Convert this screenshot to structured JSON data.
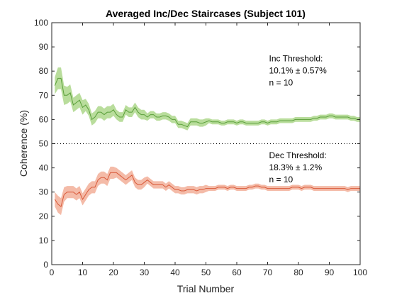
{
  "chart_data": {
    "type": "line",
    "title": "Averaged Inc/Dec Staircases (Subject 101)",
    "xlabel": "Trial Number",
    "ylabel": "Coherence (%)",
    "xlim": [
      0,
      100
    ],
    "ylim": [
      0,
      100
    ],
    "xticks": [
      "0",
      "10",
      "20",
      "30",
      "40",
      "50",
      "60",
      "70",
      "80",
      "90",
      "100"
    ],
    "yticks": [
      "0",
      "10",
      "20",
      "30",
      "40",
      "50",
      "60",
      "70",
      "80",
      "90",
      "100"
    ],
    "grid": false,
    "reference_line": {
      "y": 50,
      "style": "dotted",
      "color": "#000000"
    },
    "series": [
      {
        "color": "#5a9f3a",
        "band_color": "#b9dd9c",
        "points": [
          [
            1,
            74
          ],
          [
            2,
            77
          ],
          [
            3,
            77
          ],
          [
            4,
            70
          ],
          [
            5,
            70
          ],
          [
            6,
            71
          ],
          [
            7,
            66
          ],
          [
            8,
            67
          ],
          [
            9,
            68
          ],
          [
            10,
            65
          ],
          [
            11,
            66
          ],
          [
            12,
            64
          ],
          [
            13,
            60
          ],
          [
            14,
            61
          ],
          [
            15,
            63
          ],
          [
            16,
            63
          ],
          [
            17,
            62
          ],
          [
            18,
            63
          ],
          [
            19,
            63
          ],
          [
            20,
            64
          ],
          [
            21,
            62
          ],
          [
            22,
            61
          ],
          [
            23,
            61
          ],
          [
            24,
            64
          ],
          [
            25,
            63
          ],
          [
            26,
            63
          ],
          [
            27,
            65
          ],
          [
            28,
            63
          ],
          [
            29,
            62
          ],
          [
            30,
            62
          ],
          [
            31,
            61
          ],
          [
            32,
            62
          ],
          [
            33,
            62
          ],
          [
            34,
            61
          ],
          [
            35,
            61
          ],
          [
            36,
            61.5
          ],
          [
            37,
            61.5
          ],
          [
            38,
            61
          ],
          [
            39,
            60
          ],
          [
            40,
            60
          ],
          [
            41,
            58
          ],
          [
            42,
            58
          ],
          [
            43,
            57.5
          ],
          [
            44,
            57
          ],
          [
            45,
            59
          ],
          [
            46,
            59
          ],
          [
            47,
            59
          ],
          [
            48,
            58.5
          ],
          [
            49,
            58.5
          ],
          [
            50,
            59
          ],
          [
            51,
            59.5
          ],
          [
            52,
            59
          ],
          [
            53,
            59
          ],
          [
            54,
            59
          ],
          [
            55,
            58.5
          ],
          [
            56,
            58.5
          ],
          [
            57,
            59
          ],
          [
            58,
            59
          ],
          [
            59,
            59
          ],
          [
            60,
            58.5
          ],
          [
            61,
            59
          ],
          [
            62,
            59
          ],
          [
            63,
            58.5
          ],
          [
            64,
            58.5
          ],
          [
            65,
            58.5
          ],
          [
            66,
            58.5
          ],
          [
            67,
            58.5
          ],
          [
            68,
            59
          ],
          [
            69,
            59
          ],
          [
            70,
            58.5
          ],
          [
            71,
            59
          ],
          [
            72,
            59
          ],
          [
            73,
            59
          ],
          [
            74,
            59.5
          ],
          [
            75,
            59.5
          ],
          [
            76,
            59.5
          ],
          [
            77,
            59.5
          ],
          [
            78,
            59.5
          ],
          [
            79,
            60
          ],
          [
            80,
            60
          ],
          [
            81,
            60
          ],
          [
            82,
            60
          ],
          [
            83,
            60
          ],
          [
            84,
            60
          ],
          [
            85,
            60.5
          ],
          [
            86,
            60.5
          ],
          [
            87,
            61
          ],
          [
            88,
            61
          ],
          [
            89,
            61
          ],
          [
            90,
            61.5
          ],
          [
            91,
            61.5
          ],
          [
            92,
            61
          ],
          [
            93,
            61
          ],
          [
            94,
            61
          ],
          [
            95,
            61
          ],
          [
            96,
            61
          ],
          [
            97,
            60.5
          ],
          [
            98,
            60.5
          ],
          [
            99,
            60
          ],
          [
            100,
            60
          ]
        ],
        "error": [
          3.5,
          4.5,
          4.5,
          4,
          3.5,
          3.5,
          3,
          3,
          3,
          3,
          2.5,
          2.5,
          2.5,
          2.5,
          2.5,
          2.5,
          2.5,
          2.5,
          2.5,
          2.5,
          2,
          2,
          2,
          2,
          2,
          2,
          2,
          2,
          2,
          2,
          1.5,
          1.5,
          1.5,
          1.5,
          1.5,
          1.5,
          1.5,
          1.5,
          1.5,
          1.5,
          1.5,
          1.5,
          1.5,
          1.5,
          1.5,
          1.5,
          1.5,
          1.5,
          1.5,
          1.5,
          1,
          1,
          1,
          1,
          1,
          1,
          1,
          1,
          1,
          1,
          1,
          1,
          1,
          1,
          1,
          1,
          1,
          1,
          1,
          1,
          1,
          1,
          1,
          1,
          1,
          1,
          1,
          1,
          1,
          1,
          1,
          1,
          1,
          1,
          1,
          1,
          1,
          1,
          1,
          1,
          1,
          1,
          1,
          1,
          1,
          1,
          1,
          1,
          1,
          1
        ]
      },
      {
        "color": "#d95a3a",
        "band_color": "#f4bba8",
        "points": [
          [
            1,
            27
          ],
          [
            2,
            25
          ],
          [
            3,
            24
          ],
          [
            4,
            29
          ],
          [
            5,
            30
          ],
          [
            6,
            30
          ],
          [
            7,
            30
          ],
          [
            8,
            29
          ],
          [
            9,
            30
          ],
          [
            10,
            27
          ],
          [
            11,
            29
          ],
          [
            12,
            31
          ],
          [
            13,
            32
          ],
          [
            14,
            32
          ],
          [
            15,
            35
          ],
          [
            16,
            36
          ],
          [
            17,
            36
          ],
          [
            18,
            35
          ],
          [
            19,
            38
          ],
          [
            20,
            38
          ],
          [
            21,
            38
          ],
          [
            22,
            37
          ],
          [
            23,
            36
          ],
          [
            24,
            35
          ],
          [
            25,
            36
          ],
          [
            26,
            37
          ],
          [
            27,
            34
          ],
          [
            28,
            33
          ],
          [
            29,
            33
          ],
          [
            30,
            34
          ],
          [
            31,
            35
          ],
          [
            32,
            34
          ],
          [
            33,
            33
          ],
          [
            34,
            33
          ],
          [
            35,
            33
          ],
          [
            36,
            33
          ],
          [
            37,
            32
          ],
          [
            38,
            33
          ],
          [
            39,
            32
          ],
          [
            40,
            31
          ],
          [
            41,
            31
          ],
          [
            42,
            30.5
          ],
          [
            43,
            30.5
          ],
          [
            44,
            31
          ],
          [
            45,
            31
          ],
          [
            46,
            31
          ],
          [
            47,
            30.5
          ],
          [
            48,
            31
          ],
          [
            49,
            31
          ],
          [
            50,
            31.5
          ],
          [
            51,
            31.5
          ],
          [
            52,
            31.5
          ],
          [
            53,
            31.5
          ],
          [
            54,
            32
          ],
          [
            55,
            32
          ],
          [
            56,
            32
          ],
          [
            57,
            31.5
          ],
          [
            58,
            32
          ],
          [
            59,
            32
          ],
          [
            60,
            31.5
          ],
          [
            61,
            31.5
          ],
          [
            62,
            31.5
          ],
          [
            63,
            31.5
          ],
          [
            64,
            32
          ],
          [
            65,
            32
          ],
          [
            66,
            32.5
          ],
          [
            67,
            32.5
          ],
          [
            68,
            32
          ],
          [
            69,
            32
          ],
          [
            70,
            31.5
          ],
          [
            71,
            31.5
          ],
          [
            72,
            31.5
          ],
          [
            73,
            31.5
          ],
          [
            74,
            31.5
          ],
          [
            75,
            31.5
          ],
          [
            76,
            31.5
          ],
          [
            77,
            31.5
          ],
          [
            78,
            32
          ],
          [
            79,
            32
          ],
          [
            80,
            32
          ],
          [
            81,
            31.5
          ],
          [
            82,
            32
          ],
          [
            83,
            32
          ],
          [
            84,
            32
          ],
          [
            85,
            31.5
          ],
          [
            86,
            31.5
          ],
          [
            87,
            31.5
          ],
          [
            88,
            31.5
          ],
          [
            89,
            31.5
          ],
          [
            90,
            31.5
          ],
          [
            91,
            31.5
          ],
          [
            92,
            31.5
          ],
          [
            93,
            31.5
          ],
          [
            94,
            31.5
          ],
          [
            95,
            31.5
          ],
          [
            96,
            31
          ],
          [
            97,
            31.5
          ],
          [
            98,
            31.5
          ],
          [
            99,
            31.5
          ],
          [
            100,
            31.5
          ]
        ],
        "error": [
          3,
          3.5,
          3.5,
          3,
          2.5,
          2.5,
          2.5,
          2.5,
          2.5,
          2.5,
          2.5,
          2.5,
          2.5,
          2.5,
          2.5,
          2.5,
          2.5,
          2.5,
          2.5,
          2.5,
          2,
          2,
          2,
          2,
          2,
          2,
          2,
          2,
          2,
          2,
          1.5,
          1.5,
          1.5,
          1.5,
          1.5,
          1.5,
          1.5,
          1.5,
          1.5,
          1.5,
          1.5,
          1.5,
          1.5,
          1.5,
          1.5,
          1.5,
          1.5,
          1.5,
          1.5,
          1.5,
          1,
          1,
          1,
          1,
          1,
          1,
          1,
          1,
          1,
          1,
          1,
          1,
          1,
          1,
          1,
          1,
          1,
          1,
          1,
          1,
          1,
          1,
          1,
          1,
          1,
          1,
          1,
          1,
          1,
          1,
          1,
          1,
          1,
          1,
          1,
          1,
          1,
          1,
          1,
          1,
          1,
          1,
          1,
          1,
          1,
          1,
          1,
          1,
          1,
          1
        ]
      }
    ],
    "annotations": [
      {
        "lines": [
          "Inc Threshold:",
          "10.1% ± 0.57%",
          "n = 10"
        ],
        "x": 70,
        "y": 84
      },
      {
        "lines": [
          "Dec Threshold:",
          "18.3% ± 1.2%",
          "n = 10"
        ],
        "x": 70,
        "y": 44
      }
    ]
  }
}
